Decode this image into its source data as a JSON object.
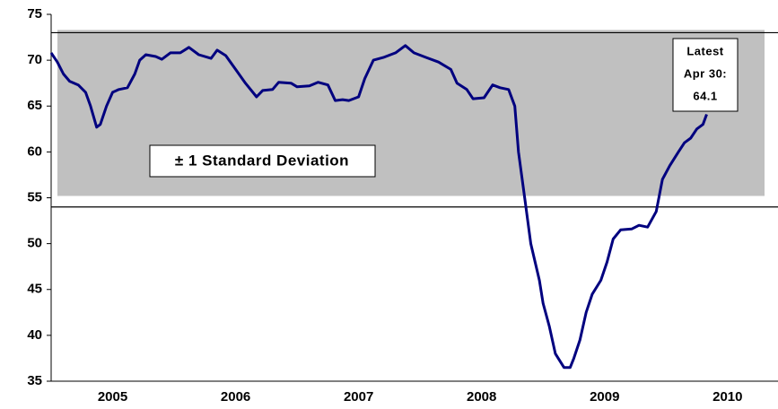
{
  "chart_data": {
    "type": "line",
    "x": [
      2005.0,
      2005.05,
      2005.1,
      2005.15,
      2005.22,
      2005.28,
      2005.32,
      2005.37,
      2005.4,
      2005.45,
      2005.5,
      2005.55,
      2005.62,
      2005.68,
      2005.72,
      2005.77,
      2005.85,
      2005.9,
      2005.97,
      2006.05,
      2006.12,
      2006.2,
      2006.3,
      2006.35,
      2006.42,
      2006.5,
      2006.58,
      2006.67,
      2006.72,
      2006.8,
      2006.85,
      2006.95,
      2007.0,
      2007.1,
      2007.17,
      2007.25,
      2007.31,
      2007.37,
      2007.42,
      2007.5,
      2007.55,
      2007.62,
      2007.7,
      2007.8,
      2007.88,
      2007.95,
      2008.05,
      2008.15,
      2008.25,
      2008.3,
      2008.38,
      2008.43,
      2008.52,
      2008.59,
      2008.65,
      2008.72,
      2008.77,
      2008.8,
      2008.85,
      2008.9,
      2008.97,
      2009.0,
      2009.05,
      2009.1,
      2009.17,
      2009.22,
      2009.25,
      2009.3,
      2009.35,
      2009.4,
      2009.47,
      2009.52,
      2009.57,
      2009.63,
      2009.72,
      2009.78,
      2009.85,
      2009.92,
      2009.97,
      2010.03,
      2010.1,
      2010.15,
      2010.2,
      2010.25,
      2010.3,
      2010.33
    ],
    "series": [
      {
        "color": "#00007f",
        "values": [
          70.8,
          69.8,
          68.5,
          67.7,
          67.3,
          66.5,
          65.0,
          62.7,
          63.0,
          65.0,
          66.5,
          66.8,
          67.0,
          68.5,
          70.0,
          70.6,
          70.4,
          70.1,
          70.8,
          70.8,
          71.4,
          70.6,
          70.2,
          71.1,
          70.5,
          69.0,
          67.5,
          66.0,
          66.7,
          66.8,
          67.6,
          67.5,
          67.1,
          67.2,
          67.6,
          67.3,
          65.6,
          65.7,
          65.6,
          66.0,
          68.0,
          70.0,
          70.3,
          70.8,
          71.6,
          70.8,
          70.3,
          69.8,
          69.0,
          67.5,
          66.8,
          65.8,
          65.9,
          67.3,
          67.0,
          66.8,
          65.0,
          60.0,
          55.0,
          50.0,
          46.0,
          43.5,
          41.0,
          38.0,
          36.5,
          36.5,
          37.5,
          39.5,
          42.5,
          44.5,
          46.0,
          48.0,
          50.5,
          51.5,
          51.6,
          52.0,
          51.8,
          53.5,
          57.0,
          58.5,
          60.0,
          61.0,
          61.5,
          62.5,
          63.0,
          64.1
        ]
      }
    ],
    "xlim": [
      2005.0,
      2010.91
    ],
    "xticks": [
      {
        "value": 2005.5,
        "label": "2005"
      },
      {
        "value": 2006.5,
        "label": "2006"
      },
      {
        "value": 2007.5,
        "label": "2007"
      },
      {
        "value": 2008.5,
        "label": "2008"
      },
      {
        "value": 2009.5,
        "label": "2009"
      },
      {
        "value": 2010.5,
        "label": "2010"
      }
    ],
    "ylim": [
      35,
      75
    ],
    "yticks": [
      35,
      40,
      45,
      50,
      55,
      60,
      65,
      70,
      75
    ],
    "std_band": {
      "lower": 55.2,
      "upper": 73.3,
      "color": "#c0c0c0",
      "label": "± 1 Standard Deviation"
    },
    "reference_lines": [
      73,
      54
    ],
    "latest_label": [
      "Latest",
      "Apr 30:",
      "64.1"
    ]
  }
}
